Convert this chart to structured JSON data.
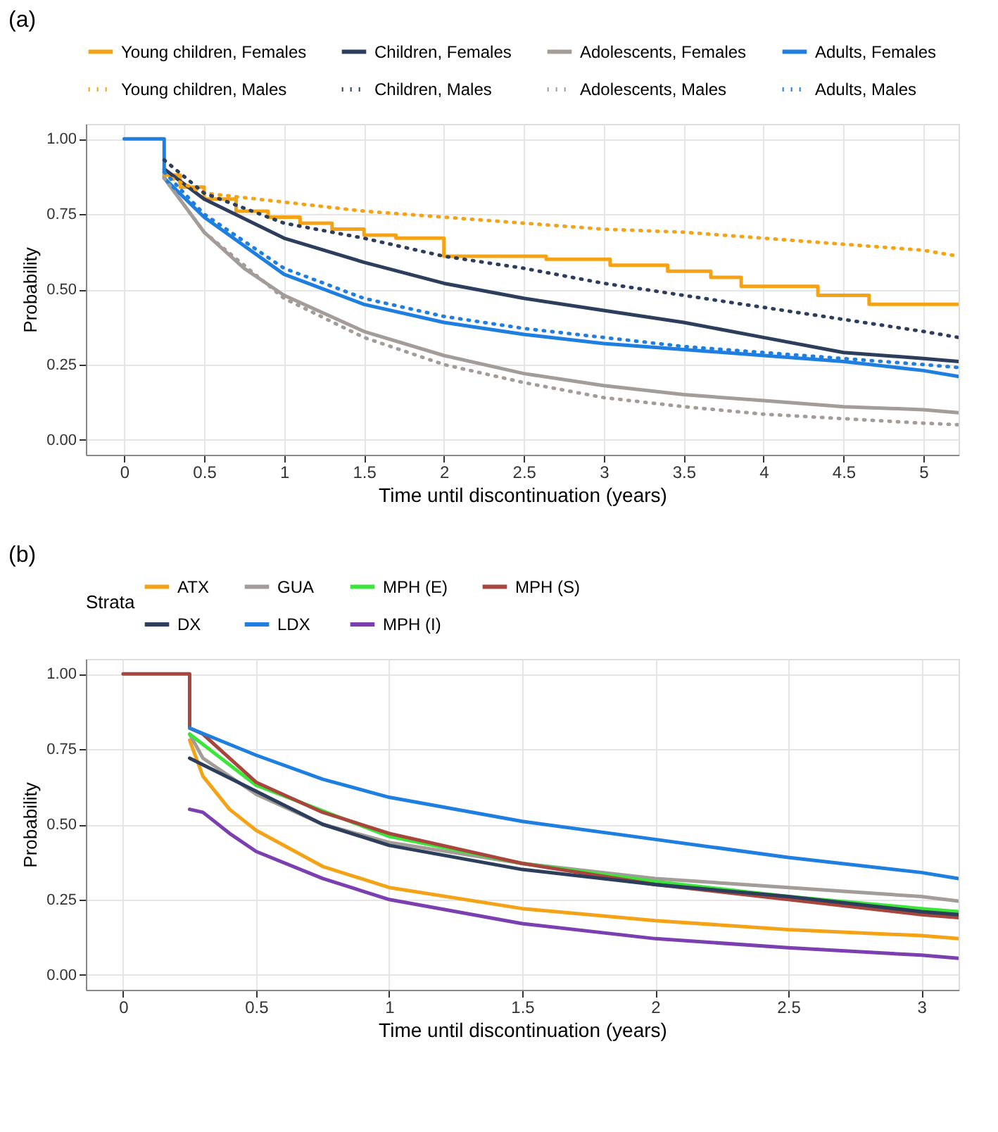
{
  "chart_data": [
    {
      "type": "line",
      "title": "(a)",
      "xlabel": "Time until discontinuation (years)",
      "ylabel": "Probability",
      "legend": "top",
      "grid": true,
      "xlim": [
        -0.24,
        5.22
      ],
      "xticks": [
        0,
        0.5,
        1,
        1.5,
        2,
        2.5,
        3,
        3.5,
        4,
        4.5,
        5
      ],
      "ylim": [
        -0.05,
        1.05
      ],
      "yticks": [
        {
          "value": 0,
          "label": "0.00"
        },
        {
          "value": 0.25,
          "label": "0.25"
        },
        {
          "value": 0.5,
          "label": "0.50"
        },
        {
          "value": 0.75,
          "label": "0.75"
        },
        {
          "value": 1,
          "label": "1.00"
        }
      ],
      "series": [
        {
          "name": "Young children, Females",
          "color": "#f5a316",
          "type": "step",
          "line_style": "solid",
          "x": [
            0.25,
            0.35,
            0.5,
            0.7,
            0.9,
            1.1,
            1.3,
            1.5,
            1.7,
            2.0,
            2.64,
            3.04,
            3.4,
            3.67,
            3.86,
            4.34,
            4.66,
            5.22
          ],
          "values": [
            0.88,
            0.84,
            0.8,
            0.76,
            0.74,
            0.72,
            0.7,
            0.68,
            0.67,
            0.61,
            0.6,
            0.58,
            0.56,
            0.54,
            0.51,
            0.48,
            0.45,
            0.45
          ]
        },
        {
          "name": "Children, Females",
          "color": "#2c3e5c",
          "line_style": "solid",
          "x": [
            0.25,
            0.5,
            1,
            1.5,
            2,
            2.5,
            3,
            3.5,
            4,
            4.5,
            5,
            5.22
          ],
          "values": [
            0.9,
            0.8,
            0.67,
            0.59,
            0.52,
            0.47,
            0.43,
            0.39,
            0.34,
            0.29,
            0.27,
            0.26
          ]
        },
        {
          "name": "Adolescents, Females",
          "color": "#a39c98",
          "line_style": "solid",
          "x": [
            0.25,
            0.5,
            0.75,
            1,
            1.5,
            2,
            2.5,
            3,
            3.5,
            4,
            4.5,
            5,
            5.22
          ],
          "values": [
            0.87,
            0.69,
            0.57,
            0.48,
            0.36,
            0.28,
            0.22,
            0.18,
            0.15,
            0.13,
            0.11,
            0.1,
            0.09
          ]
        },
        {
          "name": "Adults, Females",
          "color": "#1f7fe0",
          "line_style": "solid",
          "x": [
            0,
            0.25,
            0.25,
            0.5,
            1,
            1.5,
            2,
            2.5,
            3,
            3.5,
            4,
            4.5,
            5,
            5.22
          ],
          "values": [
            1,
            1,
            0.87,
            0.74,
            0.55,
            0.45,
            0.39,
            0.35,
            0.32,
            0.3,
            0.28,
            0.26,
            0.23,
            0.21
          ]
        },
        {
          "name": "Young children, Males",
          "color": "#f5a316",
          "line_style": "dotted",
          "x": [
            0.25,
            0.5,
            1,
            1.5,
            2,
            2.5,
            3,
            3.5,
            4,
            4.5,
            5,
            5.22
          ],
          "values": [
            0.88,
            0.82,
            0.79,
            0.76,
            0.74,
            0.72,
            0.7,
            0.69,
            0.67,
            0.65,
            0.63,
            0.61
          ]
        },
        {
          "name": "Children, Males",
          "color": "#2c3e5c",
          "line_style": "dotted",
          "x": [
            0.25,
            0.5,
            1,
            1.5,
            2,
            2.5,
            3,
            3.5,
            4,
            4.5,
            5,
            5.22
          ],
          "values": [
            0.93,
            0.82,
            0.72,
            0.67,
            0.61,
            0.57,
            0.52,
            0.48,
            0.44,
            0.4,
            0.36,
            0.34
          ]
        },
        {
          "name": "Adolescents, Males",
          "color": "#a39c98",
          "line_style": "dotted",
          "x": [
            0.25,
            0.5,
            1,
            1.5,
            2,
            2.5,
            3,
            3.5,
            4,
            4.5,
            5,
            5.22
          ],
          "values": [
            0.87,
            0.69,
            0.47,
            0.34,
            0.25,
            0.19,
            0.14,
            0.11,
            0.085,
            0.07,
            0.055,
            0.05
          ]
        },
        {
          "name": "Adults, Males",
          "color": "#1f7fe0",
          "line_style": "dotted",
          "x": [
            0.25,
            0.5,
            1,
            1.5,
            2,
            2.5,
            3,
            3.5,
            4,
            4.5,
            5,
            5.22
          ],
          "values": [
            0.89,
            0.75,
            0.57,
            0.47,
            0.41,
            0.37,
            0.34,
            0.31,
            0.29,
            0.27,
            0.25,
            0.24
          ]
        }
      ]
    },
    {
      "type": "line",
      "title": "(b)",
      "xlabel": "Time until discontinuation (years)",
      "ylabel": "Probability",
      "legend": "top",
      "legend_title": "Strata",
      "grid": true,
      "xlim": [
        -0.14,
        3.14
      ],
      "xticks": [
        0,
        0.5,
        1,
        1.5,
        2,
        2.5,
        3
      ],
      "ylim": [
        -0.05,
        1.05
      ],
      "yticks": [
        {
          "value": 0,
          "label": "0.00"
        },
        {
          "value": 0.25,
          "label": "0.25"
        },
        {
          "value": 0.5,
          "label": "0.50"
        },
        {
          "value": 0.75,
          "label": "0.75"
        },
        {
          "value": 1,
          "label": "1.00"
        }
      ],
      "series": [
        {
          "name": "ATX",
          "color": "#f5a316",
          "x": [
            0.25,
            0.3,
            0.4,
            0.5,
            0.75,
            1,
            1.5,
            2,
            2.5,
            3,
            3.14
          ],
          "values": [
            0.78,
            0.66,
            0.55,
            0.48,
            0.36,
            0.29,
            0.22,
            0.18,
            0.15,
            0.13,
            0.12
          ]
        },
        {
          "name": "GUA",
          "color": "#a39c98",
          "x": [
            0.25,
            0.3,
            0.5,
            0.75,
            1,
            1.5,
            2,
            2.5,
            3,
            3.14
          ],
          "values": [
            0.8,
            0.72,
            0.6,
            0.5,
            0.44,
            0.37,
            0.32,
            0.29,
            0.26,
            0.245
          ]
        },
        {
          "name": "MPH (E)",
          "color": "#3be63b",
          "x": [
            0.25,
            0.5,
            1,
            1.5,
            2,
            2.5,
            3,
            3.14
          ],
          "values": [
            0.8,
            0.63,
            0.46,
            0.37,
            0.31,
            0.26,
            0.22,
            0.21
          ]
        },
        {
          "name": "MPH (S)",
          "color": "#a8453c",
          "x": [
            0,
            0.25,
            0.25,
            0.3,
            0.5,
            0.75,
            1,
            1.5,
            2,
            2.5,
            3,
            3.14
          ],
          "values": [
            1,
            1,
            0.82,
            0.8,
            0.64,
            0.54,
            0.47,
            0.37,
            0.3,
            0.25,
            0.2,
            0.19
          ]
        },
        {
          "name": "DX",
          "color": "#2c3e5c",
          "x": [
            0.25,
            0.5,
            0.75,
            1,
            1.5,
            2,
            2.5,
            3,
            3.14
          ],
          "values": [
            0.72,
            0.61,
            0.5,
            0.43,
            0.35,
            0.3,
            0.26,
            0.21,
            0.2
          ]
        },
        {
          "name": "LDX",
          "color": "#1f7fe0",
          "x": [
            0.25,
            0.5,
            0.75,
            1,
            1.5,
            2,
            2.5,
            3,
            3.14
          ],
          "values": [
            0.82,
            0.73,
            0.65,
            0.59,
            0.51,
            0.45,
            0.39,
            0.34,
            0.32
          ]
        },
        {
          "name": "MPH (I)",
          "color": "#7b3fb0",
          "x": [
            0.25,
            0.3,
            0.4,
            0.5,
            0.75,
            1,
            1.5,
            2,
            2.5,
            3,
            3.14
          ],
          "values": [
            0.55,
            0.54,
            0.47,
            0.41,
            0.32,
            0.25,
            0.17,
            0.12,
            0.09,
            0.065,
            0.055
          ]
        }
      ]
    }
  ]
}
